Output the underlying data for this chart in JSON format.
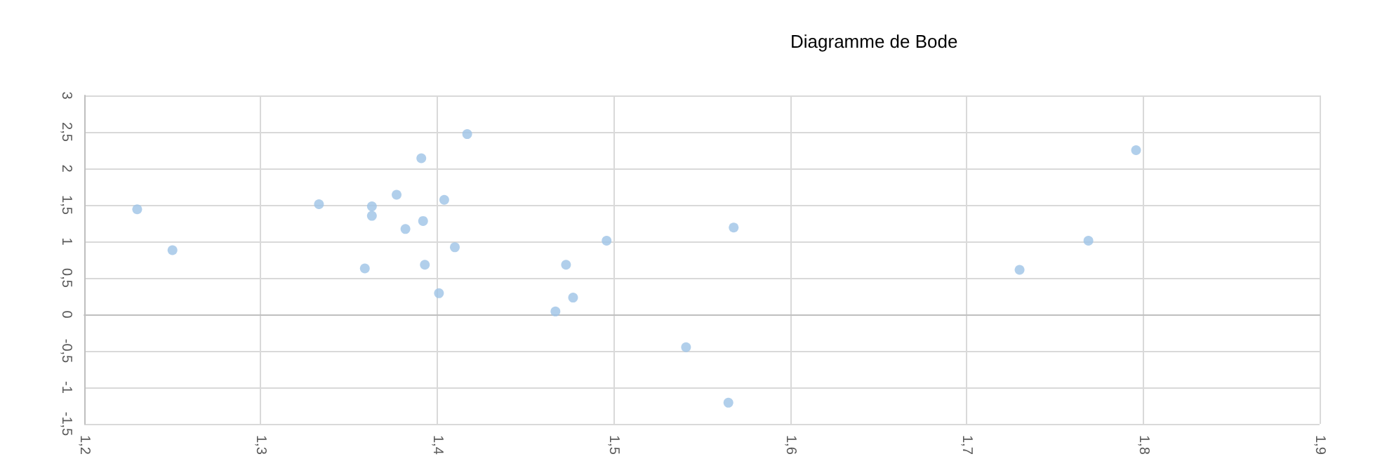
{
  "chart_data": {
    "type": "scatter",
    "title": "Diagramme de Bode",
    "x": [
      1.23,
      1.25,
      1.333,
      1.359,
      1.363,
      1.363,
      1.377,
      1.382,
      1.391,
      1.392,
      1.393,
      1.401,
      1.404,
      1.41,
      1.417,
      1.467,
      1.473,
      1.477,
      1.496,
      1.541,
      1.568,
      1.565,
      1.73,
      1.769,
      1.796
    ],
    "values": [
      1.44,
      0.88,
      1.51,
      0.63,
      1.48,
      1.35,
      1.64,
      1.17,
      2.14,
      1.28,
      0.68,
      0.29,
      1.57,
      0.92,
      2.47,
      0.04,
      0.68,
      0.23,
      1.01,
      -0.45,
      1.19,
      -1.21,
      0.61,
      1.01,
      2.25
    ],
    "color": "#9dc3e6",
    "marker": "circle",
    "grid": true,
    "xlim": [
      1.2,
      1.9
    ],
    "xticks": [
      {
        "value": 1.2,
        "label": "1,2"
      },
      {
        "value": 1.3,
        "label": "1,3"
      },
      {
        "value": 1.4,
        "label": "1,4"
      },
      {
        "value": 1.5,
        "label": "1,5"
      },
      {
        "value": 1.6,
        "label": "1,6"
      },
      {
        "value": 1.7,
        "label": "1,7"
      },
      {
        "value": 1.8,
        "label": "1,8"
      },
      {
        "value": 1.9,
        "label": "1,9"
      }
    ],
    "ylim": [
      -1.5,
      3
    ],
    "yticks": [
      {
        "value": -1.5,
        "label": "-1,5"
      },
      -1,
      {
        "value": -0.5,
        "label": "-0,5"
      },
      0,
      {
        "value": 0.5,
        "label": "0,5"
      },
      1,
      {
        "value": 1.5,
        "label": "1,5"
      },
      2,
      {
        "value": 2.5,
        "label": "2,5"
      },
      3
    ]
  }
}
